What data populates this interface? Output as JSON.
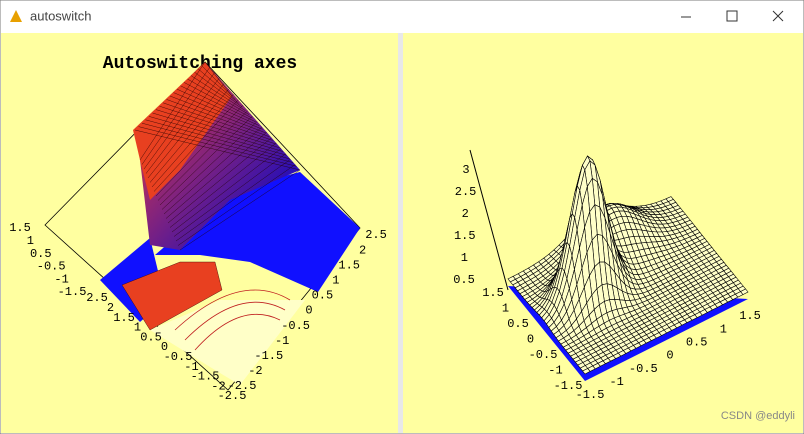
{
  "window": {
    "title": "autoswitch",
    "watermark": "CSDN @eddyli"
  },
  "left_plot": {
    "title": "Autoswitching axes",
    "axis_a": [
      "1.5",
      "1",
      "0.5",
      "-0.5",
      "-1",
      "-1.5"
    ],
    "axis_b": [
      "2.5",
      "2",
      "1.5",
      "1",
      "0.5",
      "0",
      "-0.5",
      "-1",
      "-1.5",
      "-2",
      "-2.5"
    ],
    "axis_c": [
      "2.5",
      "2",
      "1.5",
      "1",
      "0.5",
      "0",
      "-0.5",
      "-1",
      "-1.5",
      "-2",
      "-2.5"
    ]
  },
  "right_plot": {
    "axis_z": [
      "3",
      "2.5",
      "2",
      "1.5",
      "1",
      "0.5"
    ],
    "axis_a": [
      "1.5",
      "1",
      "0.5",
      "0",
      "-0.5",
      "-1",
      "-1.5"
    ],
    "axis_b": [
      "1.5",
      "1",
      "0.5",
      "0",
      "-0.5",
      "-1",
      "-1.5"
    ]
  }
}
